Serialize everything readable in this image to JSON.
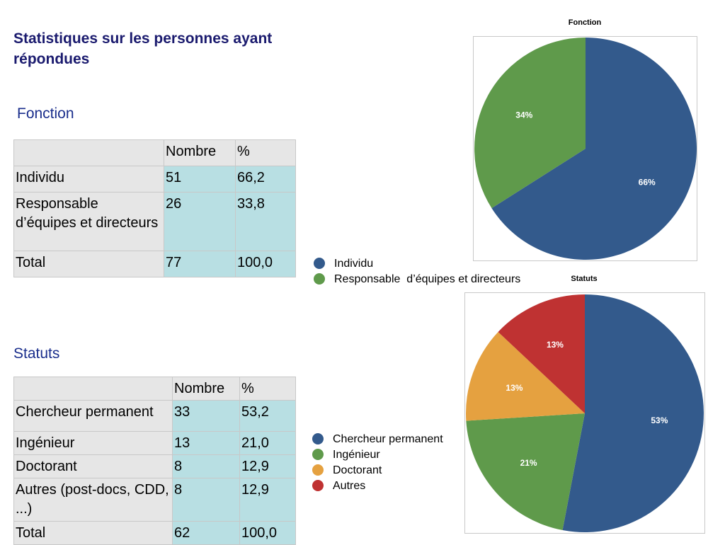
{
  "page_title": "Statistiques sur les personnes ayant répondues",
  "fonction": {
    "heading": "Fonction",
    "table": {
      "headers": [
        "",
        "Nombre",
        "%"
      ],
      "rows": [
        [
          "Individu",
          "51",
          "66,2"
        ],
        [
          "Responsable d’équipes et directeurs",
          "26",
          "33,8"
        ],
        [
          "Total",
          "77",
          "100,0"
        ]
      ]
    }
  },
  "statuts": {
    "heading": "Statuts",
    "table": {
      "headers": [
        "",
        "Nombre",
        "%"
      ],
      "rows": [
        [
          "Chercheur permanent",
          "33",
          "53,2"
        ],
        [
          "Ingénieur",
          "13",
          "21,0"
        ],
        [
          "Doctorant",
          "8",
          "12,9"
        ],
        [
          "Autres (post-docs, CDD, ...)",
          "8",
          "12,9"
        ],
        [
          "Total",
          "62",
          "100,0"
        ]
      ]
    }
  },
  "chart_data": [
    {
      "type": "pie",
      "title": "Fonction",
      "slices": [
        {
          "name": "Individu",
          "value": 66,
          "label": "66%",
          "color": "#335a8c"
        },
        {
          "name": "Responsable  d’équipes et directeurs",
          "value": 34,
          "label": "34%",
          "color": "#5f9a4b"
        }
      ]
    },
    {
      "type": "pie",
      "title": "Statuts",
      "slices": [
        {
          "name": "Chercheur permanent",
          "value": 53,
          "label": "53%",
          "color": "#335a8c"
        },
        {
          "name": "Ingénieur",
          "value": 21,
          "label": "21%",
          "color": "#5f9a4b"
        },
        {
          "name": "Doctorant",
          "value": 13,
          "label": "13%",
          "color": "#e5a140"
        },
        {
          "name": "Autres",
          "value": 13,
          "label": "13%",
          "color": "#bf3232"
        }
      ]
    }
  ]
}
